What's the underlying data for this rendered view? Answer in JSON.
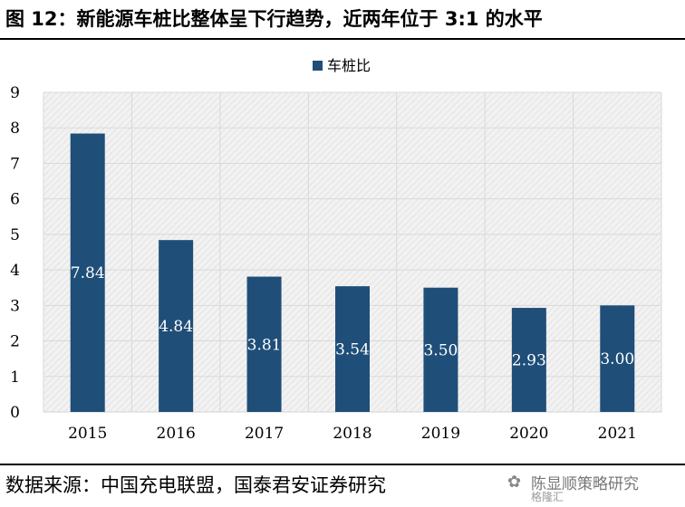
{
  "header": {
    "title": "图 12：新能源车桩比整体呈下行趋势，近两年位于 3:1 的水平"
  },
  "footer": {
    "source": "数据来源：中国充电联盟，国泰君安证券研究",
    "watermark_line1": "陈显顺策略研究",
    "watermark_line2": "格隆汇"
  },
  "chart_data": {
    "type": "bar",
    "categories": [
      "2015",
      "2016",
      "2017",
      "2018",
      "2019",
      "2020",
      "2021"
    ],
    "series": [
      {
        "name": "车桩比",
        "values": [
          7.84,
          4.84,
          3.81,
          3.54,
          3.5,
          2.93,
          3.0
        ]
      }
    ],
    "data_labels": [
      "7.84",
      "4.84",
      "3.81",
      "3.54",
      "3.50",
      "2.93",
      "3.00"
    ],
    "ylim": [
      0,
      9
    ],
    "yticks": [
      "0",
      "1",
      "2",
      "3",
      "4",
      "5",
      "6",
      "7",
      "8",
      "9"
    ],
    "grid": true,
    "legend_position": "top",
    "colors": {
      "bar": "#1f4e79",
      "grid": "#d9d9d9",
      "plot_background": "#f2f2f2"
    }
  }
}
